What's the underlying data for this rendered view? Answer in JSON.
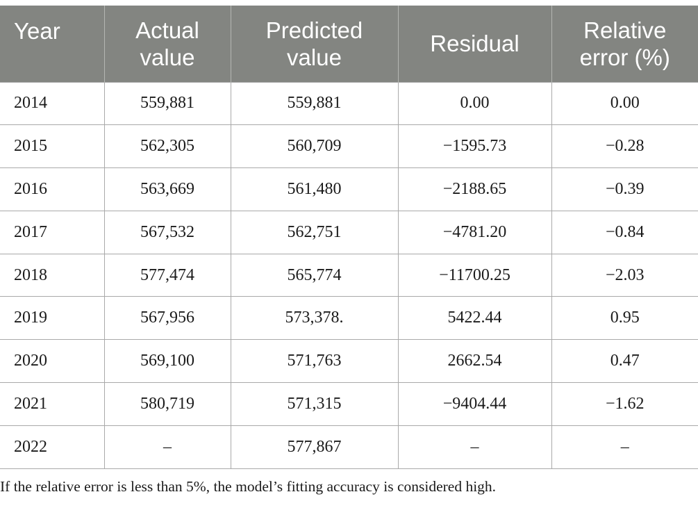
{
  "table": {
    "headers": [
      [
        "Year"
      ],
      [
        "Actual",
        "value"
      ],
      [
        "Predicted",
        "value"
      ],
      [
        "Residual"
      ],
      [
        "Relative",
        "error (%)"
      ]
    ],
    "rows": [
      [
        "2014",
        "559,881",
        "559,881",
        "0.00",
        "0.00"
      ],
      [
        "2015",
        "562,305",
        "560,709",
        "−1595.73",
        "−0.28"
      ],
      [
        "2016",
        "563,669",
        "561,480",
        "−2188.65",
        "−0.39"
      ],
      [
        "2017",
        "567,532",
        "562,751",
        "−4781.20",
        "−0.84"
      ],
      [
        "2018",
        "577,474",
        "565,774",
        "−11700.25",
        "−2.03"
      ],
      [
        "2019",
        "567,956",
        "573,378.",
        "5422.44",
        "0.95"
      ],
      [
        "2020",
        "569,100",
        "571,763",
        "2662.54",
        "0.47"
      ],
      [
        "2021",
        "580,719",
        "571,315",
        "−9404.44",
        "−1.62"
      ],
      [
        "2022",
        "–",
        "577,867",
        "–",
        "–"
      ]
    ]
  },
  "footnote": "If the relative error is less than 5%, the model’s fitting accuracy is considered high.",
  "colors": {
    "header_background": "#838581",
    "header_text": "#ffffff",
    "grid_line": "#a9a9a9"
  }
}
